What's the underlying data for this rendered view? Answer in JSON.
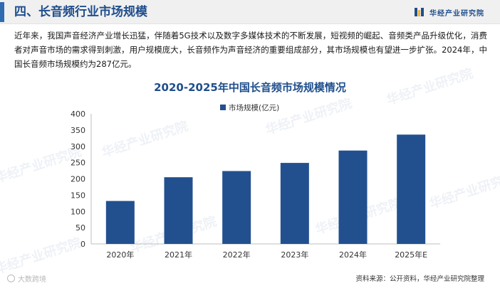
{
  "header": {
    "title": "四、长音频行业市场规模",
    "brand": "华经产业研究院",
    "accent_color": "#2e6bb0",
    "brand_color": "#1f4e8c"
  },
  "intro_text": "近年来，我国声音经济产业增长迅猛，伴随着5G技术以及数字多媒体技术的不断发展，短视频的崛起、音频类产品升级优化，消费者对声音市场的需求得到刺激，用户规模庞大，长音频作为声音经济的重要组成部分，其市场规模也有望进一步扩张。2024年，中国长音频市场规模约为287亿元。",
  "chart_data": {
    "type": "bar",
    "title": "2020-2025年中国长音频市场规模情况",
    "categories": [
      "2020年",
      "2021年",
      "2022年",
      "2023年",
      "2024年",
      "2025年E"
    ],
    "series": [
      {
        "name": "市场规模(亿元)",
        "values": [
          132,
          205,
          224,
          249,
          287,
          336
        ],
        "color": "#22508f"
      }
    ],
    "ylim": [
      0,
      400
    ],
    "yticks": [
      0,
      50,
      100,
      150,
      200,
      250,
      300,
      350,
      400
    ],
    "grid": false,
    "legend": "top-center"
  },
  "watermark_text": "华经产业研究院",
  "footer": {
    "source": "资料来源：公开资料，华经产业研究院整理",
    "mark": "大数跨境"
  }
}
